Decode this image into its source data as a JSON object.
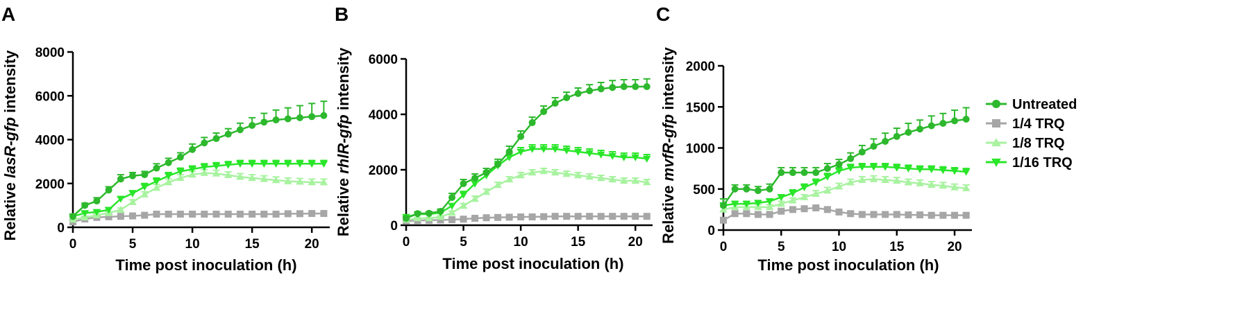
{
  "chart_data": [
    {
      "panel": "A",
      "type": "line",
      "xlabel": "Time post inoculation (h)",
      "ylabel_prefix": "Relative ",
      "ylabel_gene": "lasR-gfp",
      "ylabel_suffix": " intensity",
      "xlim": [
        0,
        21.5
      ],
      "ylim": [
        0,
        8000
      ],
      "xticks": [
        0,
        5,
        10,
        15,
        20
      ],
      "yticks": [
        0,
        2000,
        4000,
        6000,
        8000
      ],
      "series": [
        {
          "name": "Untreated",
          "x": [
            0,
            1,
            2,
            3,
            4,
            5,
            6,
            7,
            8,
            9,
            10,
            11,
            12,
            13,
            14,
            15,
            16,
            17,
            18,
            19,
            20,
            21
          ],
          "values": [
            500,
            1000,
            1200,
            1700,
            2200,
            2350,
            2400,
            2700,
            2950,
            3200,
            3550,
            3850,
            4050,
            4250,
            4450,
            4650,
            4800,
            4900,
            4950,
            5000,
            5050,
            5100
          ],
          "err": [
            100,
            100,
            150,
            150,
            200,
            150,
            150,
            200,
            200,
            200,
            250,
            250,
            250,
            250,
            300,
            350,
            400,
            450,
            500,
            550,
            600,
            650
          ]
        },
        {
          "name": "1/4 TRQ",
          "x": [
            0,
            1,
            2,
            3,
            4,
            5,
            6,
            7,
            8,
            9,
            10,
            11,
            12,
            13,
            14,
            15,
            16,
            17,
            18,
            19,
            20,
            21
          ],
          "values": [
            250,
            380,
            450,
            480,
            500,
            520,
            550,
            600,
            600,
            600,
            600,
            600,
            600,
            600,
            600,
            600,
            600,
            600,
            620,
            620,
            630,
            630
          ],
          "err": [
            30,
            40,
            40,
            40,
            40,
            40,
            40,
            40,
            40,
            40,
            40,
            40,
            40,
            40,
            40,
            40,
            40,
            40,
            40,
            40,
            40,
            40
          ]
        },
        {
          "name": "1/8 TRQ",
          "x": [
            0,
            1,
            2,
            3,
            4,
            5,
            6,
            7,
            8,
            9,
            10,
            11,
            12,
            13,
            14,
            15,
            16,
            17,
            18,
            19,
            20,
            21
          ],
          "values": [
            350,
            450,
            550,
            650,
            800,
            1150,
            1500,
            1800,
            2050,
            2250,
            2400,
            2480,
            2450,
            2380,
            2300,
            2250,
            2200,
            2150,
            2100,
            2080,
            2050,
            2050
          ],
          "err": [
            50,
            50,
            60,
            60,
            80,
            100,
            120,
            150,
            150,
            150,
            150,
            150,
            150,
            150,
            150,
            150,
            150,
            150,
            150,
            150,
            150,
            150
          ]
        },
        {
          "name": "1/16 TRQ",
          "x": [
            0,
            1,
            2,
            3,
            4,
            5,
            6,
            7,
            8,
            9,
            10,
            11,
            12,
            13,
            14,
            15,
            16,
            17,
            18,
            19,
            20,
            21
          ],
          "values": [
            500,
            650,
            700,
            800,
            1300,
            1550,
            1850,
            2100,
            2350,
            2550,
            2650,
            2750,
            2800,
            2850,
            2900,
            2900,
            2900,
            2900,
            2900,
            2900,
            2900,
            2900
          ],
          "err": [
            60,
            60,
            70,
            80,
            100,
            120,
            150,
            150,
            150,
            150,
            150,
            150,
            150,
            150,
            150,
            150,
            150,
            150,
            150,
            150,
            150,
            150
          ]
        }
      ]
    },
    {
      "panel": "B",
      "type": "line",
      "xlabel": "Time post inoculation (h)",
      "ylabel_prefix": "Relative ",
      "ylabel_gene": "rhlR-gfp",
      "ylabel_suffix": " intensity",
      "xlim": [
        0,
        21.5
      ],
      "ylim": [
        0,
        6000
      ],
      "xticks": [
        0,
        5,
        10,
        15,
        20
      ],
      "yticks": [
        0,
        2000,
        4000,
        6000
      ],
      "series": [
        {
          "name": "Untreated",
          "x": [
            0,
            1,
            2,
            3,
            4,
            5,
            6,
            7,
            8,
            9,
            10,
            11,
            12,
            13,
            14,
            15,
            16,
            17,
            18,
            19,
            20,
            21
          ],
          "values": [
            250,
            420,
            430,
            500,
            1000,
            1500,
            1700,
            1900,
            2200,
            2650,
            3200,
            3700,
            4100,
            4400,
            4600,
            4750,
            4850,
            4920,
            4970,
            5000,
            5000,
            5000
          ],
          "err": [
            50,
            50,
            50,
            80,
            150,
            150,
            150,
            150,
            180,
            200,
            200,
            200,
            200,
            200,
            200,
            200,
            220,
            230,
            250,
            250,
            250,
            280
          ]
        },
        {
          "name": "1/4 TRQ",
          "x": [
            0,
            1,
            2,
            3,
            4,
            5,
            6,
            7,
            8,
            9,
            10,
            11,
            12,
            13,
            14,
            15,
            16,
            17,
            18,
            19,
            20,
            21
          ],
          "values": [
            150,
            170,
            180,
            190,
            200,
            220,
            250,
            270,
            280,
            290,
            300,
            300,
            310,
            320,
            320,
            320,
            320,
            320,
            320,
            320,
            320,
            320
          ],
          "err": [
            20,
            20,
            20,
            20,
            20,
            20,
            20,
            20,
            20,
            20,
            20,
            20,
            20,
            20,
            20,
            20,
            20,
            20,
            20,
            20,
            20,
            20
          ]
        },
        {
          "name": "1/8 TRQ",
          "x": [
            0,
            1,
            2,
            3,
            4,
            5,
            6,
            7,
            8,
            9,
            10,
            11,
            12,
            13,
            14,
            15,
            16,
            17,
            18,
            19,
            20,
            21
          ],
          "values": [
            200,
            250,
            250,
            300,
            450,
            700,
            950,
            1200,
            1450,
            1650,
            1800,
            1900,
            1950,
            1900,
            1850,
            1800,
            1750,
            1700,
            1650,
            1600,
            1600,
            1550
          ],
          "err": [
            30,
            30,
            30,
            40,
            60,
            80,
            100,
            100,
            100,
            100,
            100,
            100,
            100,
            100,
            100,
            100,
            100,
            100,
            100,
            100,
            100,
            100
          ]
        },
        {
          "name": "1/16 TRQ",
          "x": [
            0,
            1,
            2,
            3,
            4,
            5,
            6,
            7,
            8,
            9,
            10,
            11,
            12,
            13,
            14,
            15,
            16,
            17,
            18,
            19,
            20,
            21
          ],
          "values": [
            300,
            400,
            400,
            450,
            700,
            1100,
            1500,
            1800,
            2150,
            2450,
            2650,
            2750,
            2750,
            2750,
            2700,
            2650,
            2600,
            2550,
            2500,
            2450,
            2450,
            2400
          ],
          "err": [
            40,
            40,
            40,
            50,
            80,
            120,
            150,
            150,
            150,
            150,
            150,
            150,
            150,
            150,
            150,
            150,
            150,
            150,
            150,
            150,
            150,
            150
          ]
        }
      ]
    },
    {
      "panel": "C",
      "type": "line",
      "xlabel": "Time post inoculation (h)",
      "ylabel_prefix": "Relative ",
      "ylabel_gene": "mvfR-gfp",
      "ylabel_suffix": " intensity",
      "xlim": [
        0,
        21.5
      ],
      "ylim": [
        0,
        2000
      ],
      "xticks": [
        0,
        5,
        10,
        15,
        20
      ],
      "yticks": [
        0,
        500,
        1000,
        1500,
        2000
      ],
      "series": [
        {
          "name": "Untreated",
          "x": [
            0,
            1,
            2,
            3,
            4,
            5,
            6,
            7,
            8,
            9,
            10,
            11,
            12,
            13,
            14,
            15,
            16,
            17,
            18,
            19,
            20,
            21
          ],
          "values": [
            300,
            500,
            500,
            480,
            500,
            700,
            700,
            700,
            700,
            750,
            800,
            870,
            950,
            1020,
            1080,
            1140,
            1190,
            1230,
            1270,
            1300,
            1330,
            1350
          ],
          "err": [
            80,
            50,
            50,
            50,
            60,
            60,
            60,
            60,
            60,
            60,
            60,
            70,
            80,
            90,
            100,
            100,
            110,
            110,
            120,
            120,
            130,
            140
          ]
        },
        {
          "name": "1/4 TRQ",
          "x": [
            0,
            1,
            2,
            3,
            4,
            5,
            6,
            7,
            8,
            9,
            10,
            11,
            12,
            13,
            14,
            15,
            16,
            17,
            18,
            19,
            20,
            21
          ],
          "values": [
            120,
            200,
            200,
            190,
            190,
            230,
            250,
            260,
            270,
            250,
            220,
            200,
            190,
            190,
            190,
            190,
            185,
            185,
            180,
            180,
            180,
            180
          ],
          "err": [
            20,
            20,
            20,
            20,
            20,
            20,
            20,
            20,
            20,
            20,
            20,
            20,
            20,
            20,
            20,
            20,
            20,
            20,
            20,
            20,
            20,
            20
          ]
        },
        {
          "name": "1/8 TRQ",
          "x": [
            0,
            1,
            2,
            3,
            4,
            5,
            6,
            7,
            8,
            9,
            10,
            11,
            12,
            13,
            14,
            15,
            16,
            17,
            18,
            19,
            20,
            21
          ],
          "values": [
            250,
            280,
            280,
            280,
            280,
            320,
            360,
            400,
            440,
            480,
            530,
            580,
            610,
            620,
            610,
            600,
            580,
            570,
            550,
            540,
            520,
            510
          ],
          "err": [
            30,
            30,
            30,
            30,
            30,
            30,
            30,
            30,
            40,
            40,
            40,
            40,
            40,
            40,
            40,
            40,
            40,
            40,
            40,
            40,
            40,
            40
          ]
        },
        {
          "name": "1/16 TRQ",
          "x": [
            0,
            1,
            2,
            3,
            4,
            5,
            6,
            7,
            8,
            9,
            10,
            11,
            12,
            13,
            14,
            15,
            16,
            17,
            18,
            19,
            20,
            21
          ],
          "values": [
            300,
            320,
            320,
            330,
            350,
            400,
            450,
            520,
            580,
            650,
            720,
            760,
            770,
            770,
            770,
            760,
            750,
            740,
            740,
            730,
            720,
            710
          ],
          "err": [
            30,
            30,
            30,
            30,
            30,
            30,
            40,
            40,
            40,
            40,
            40,
            40,
            40,
            40,
            40,
            40,
            40,
            40,
            40,
            40,
            40,
            40
          ]
        }
      ]
    }
  ],
  "legend": {
    "placement": "right",
    "items": [
      {
        "name": "Untreated",
        "color": "#2db82d",
        "marker": "circle"
      },
      {
        "name": "1/4 TRQ",
        "color": "#a6a6a6",
        "marker": "square"
      },
      {
        "name": "1/8 TRQ",
        "color": "#a8f2a0",
        "marker": "triangle-up"
      },
      {
        "name": "1/16 TRQ",
        "color": "#29e629",
        "marker": "triangle-down"
      }
    ]
  }
}
